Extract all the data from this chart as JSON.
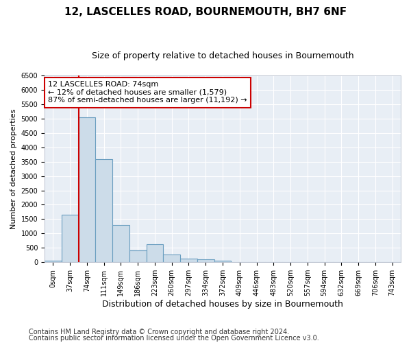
{
  "title": "12, LASCELLES ROAD, BOURNEMOUTH, BH7 6NF",
  "subtitle": "Size of property relative to detached houses in Bournemouth",
  "xlabel": "Distribution of detached houses by size in Bournemouth",
  "ylabel": "Number of detached properties",
  "categories": [
    "0sqm",
    "37sqm",
    "74sqm",
    "111sqm",
    "149sqm",
    "186sqm",
    "223sqm",
    "260sqm",
    "297sqm",
    "334sqm",
    "372sqm",
    "409sqm",
    "446sqm",
    "483sqm",
    "520sqm",
    "557sqm",
    "594sqm",
    "632sqm",
    "669sqm",
    "706sqm",
    "743sqm"
  ],
  "bar_heights": [
    50,
    1650,
    5050,
    3580,
    1300,
    400,
    620,
    270,
    130,
    90,
    60,
    0,
    0,
    0,
    0,
    0,
    0,
    0,
    0,
    0,
    0
  ],
  "bar_color": "#ccdce9",
  "bar_edge_color": "#6a9ec0",
  "vline_x": 2,
  "vline_color": "#cc0000",
  "ylim": [
    0,
    6500
  ],
  "yticks": [
    0,
    500,
    1000,
    1500,
    2000,
    2500,
    3000,
    3500,
    4000,
    4500,
    5000,
    5500,
    6000,
    6500
  ],
  "annotation_text": "12 LASCELLES ROAD: 74sqm\n← 12% of detached houses are smaller (1,579)\n87% of semi-detached houses are larger (11,192) →",
  "annotation_box_facecolor": "#ffffff",
  "annotation_box_edgecolor": "#cc0000",
  "footer_line1": "Contains HM Land Registry data © Crown copyright and database right 2024.",
  "footer_line2": "Contains public sector information licensed under the Open Government Licence v3.0.",
  "bg_color": "#e8eef5",
  "fig_bg_color": "#ffffff",
  "title_fontsize": 11,
  "subtitle_fontsize": 9,
  "xlabel_fontsize": 9,
  "ylabel_fontsize": 8,
  "tick_fontsize": 7,
  "footer_fontsize": 7,
  "annotation_fontsize": 8
}
